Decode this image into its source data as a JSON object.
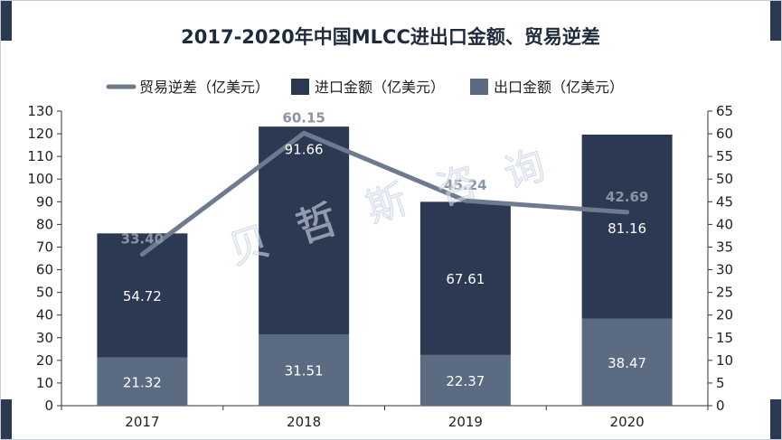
{
  "chart_data": {
    "type": "bar",
    "title": "2017-2020年中国MLCC进出口金额、贸易逆差",
    "categories": [
      "2017",
      "2018",
      "2019",
      "2020"
    ],
    "series": [
      {
        "name": "出口金额（亿美元）",
        "kind": "stacked-bar",
        "axis": "left",
        "color": "#5a6b82",
        "values": [
          21.32,
          31.51,
          22.37,
          38.47
        ]
      },
      {
        "name": "进口金额（亿美元）",
        "kind": "stacked-bar",
        "axis": "left",
        "color": "#2b3a52",
        "values": [
          54.72,
          91.66,
          67.61,
          81.16
        ]
      },
      {
        "name": "贸易逆差（亿美元）",
        "kind": "line",
        "axis": "right",
        "color": "#6e7a8e",
        "values": [
          33.4,
          60.15,
          45.24,
          42.69
        ]
      }
    ],
    "data_labels": {
      "export": [
        "21.32",
        "31.51",
        "22.37",
        "38.47"
      ],
      "import": [
        "54.72",
        "91.66",
        "67.61",
        "81.16"
      ],
      "deficit": [
        "33.40",
        "60.15",
        "45.24",
        "42.69"
      ]
    },
    "legend_order": [
      "贸易逆差（亿美元）",
      "进口金额（亿美元）",
      "出口金额（亿美元）"
    ],
    "legend_position": "top",
    "y_left": {
      "min": 0,
      "max": 130,
      "step": 10
    },
    "y_right": {
      "min": 0,
      "max": 65,
      "step": 5
    },
    "grid": false,
    "watermark": "贝哲斯咨询"
  }
}
